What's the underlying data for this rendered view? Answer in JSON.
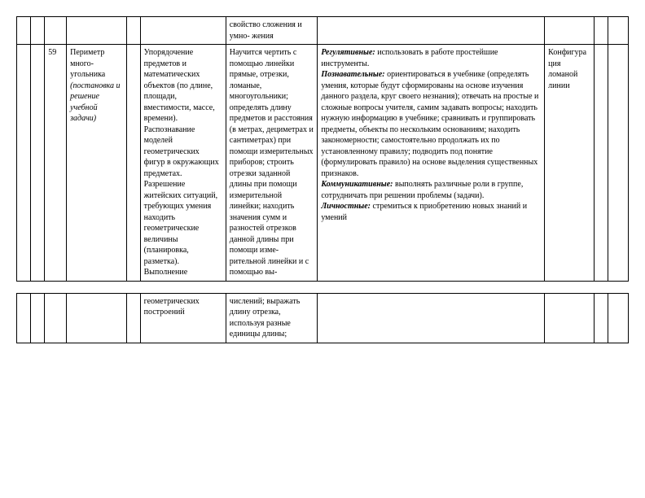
{
  "table1": {
    "row0": {
      "c6": "свойство сложения и умно-\nжения"
    },
    "row1": {
      "c2": "59",
      "c3_plain": "Периметр много-\nугольника ",
      "c3_italic": "(постановка и решение учебной задачи)",
      "c5": "Упорядочение предметов и математических объектов (по длине, площади, вместимости, массе, времени). Распознавание моделей геометрических фигур в окружающих предметах. Разрешение житейских ситуаций, требующих умения находить геометрические величины (планировка, разметка). Выполнение",
      "c6": "Научится чертить с помощью линейки прямые, отрезки, ломаные, многоугольники; определять длину предметов и расстояния (в метрах, дециметрах и сантиметрах) при помощи измерительных приборов; строить отрезки заданной длины при помощи измерительной линейки; находить значения сумм и разностей отрезков данной длины при помощи изме-рительной линейки и с помощью вы-",
      "c7_reg_label": "Регулятивные:",
      "c7_reg_text": " использовать в работе простейшие инструменты.",
      "c7_poz_label": "Познавательные:",
      "c7_poz_text": " ориентироваться в учебнике (определять умения, которые будут сформированы на основе изучения данного раздела, круг своего незнания); отвечать на простые и сложные вопросы учителя, самим задавать вопросы; находить нужную информацию в учебнике; сравнивать и группировать предметы, объекты по нескольким основаниям; находить закономерности; самостоятельно продолжать их по установленному правилу; подводить под понятие (формулировать правило) на основе выделения существенных признаков.",
      "c7_kom_label": "Коммуникативные:",
      "c7_kom_text": " выполнять различные роли в группе, сотрудничать при решении проблемы (задачи).",
      "c7_lic_label": "Личностные:",
      "c7_lic_text": " стремиться к приобретению новых знаний и умений",
      "c8": "Конфигурация ломаной линии"
    }
  },
  "table2": {
    "row0": {
      "c5": "геометрических построений",
      "c6": "числений; выражать длину отрезка, используя разные единицы длины;"
    }
  }
}
